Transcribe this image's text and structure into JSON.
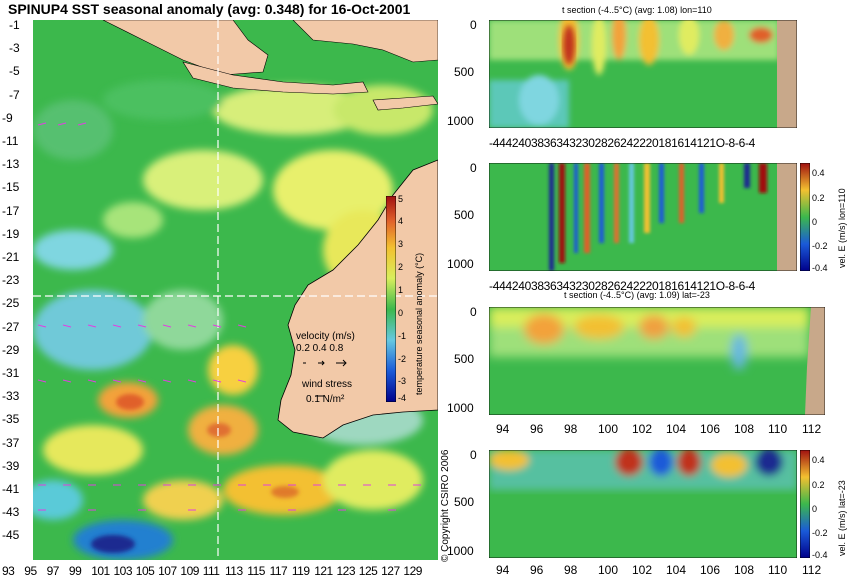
{
  "title": "SPINUP4 SST seasonal anomaly (avg: 0.348) for 16-Oct-2001",
  "map": {
    "lat_labels": [
      "-1",
      "-3",
      "-5",
      "-7",
      "-9",
      "-11",
      "-13",
      "-15",
      "-17",
      "-19",
      "-21",
      "-23",
      "-25",
      "-27",
      "-29",
      "-31",
      "-33",
      "-35",
      "-37",
      "-39",
      "-41",
      "-43",
      "-45"
    ],
    "lon_labels": [
      "93",
      "95",
      "97",
      "99",
      "101",
      "103",
      "105",
      "107",
      "109",
      "111",
      "113",
      "115",
      "117",
      "119",
      "121",
      "123",
      "125",
      "127",
      "129"
    ],
    "colorbar": {
      "ticks": [
        "5",
        "4",
        "3",
        "2",
        "1",
        "0",
        "-1",
        "-2",
        "-3",
        "-4"
      ],
      "label": "temperature seasonal anomaly (°C)"
    },
    "velocity_legend": {
      "title": "velocity (m/s)",
      "scale": "0.2 0.4 0.8"
    },
    "wind_legend": {
      "title": "wind stress",
      "value": "0.1 N/m²"
    }
  },
  "panels": [
    {
      "id": "t-section-lon",
      "title": "t section (-4..5°C) (avg: 1.08) lon=110",
      "y_ticks": [
        "0",
        "500",
        "1000"
      ],
      "x_ticks": [
        "-44",
        "-42",
        "-40",
        "-38",
        "-36",
        "-34",
        "-32",
        "-30",
        "-28",
        "-26",
        "-24",
        "-22",
        "-20",
        "-18",
        "-16",
        "-14",
        "-12",
        "-10",
        "-8",
        "-6",
        "-4"
      ],
      "x_label_text": "-44424038363432302826242220181614121O-8-6-4"
    },
    {
      "id": "vel-section-lon",
      "title": "",
      "y_ticks": [
        "0",
        "500",
        "1000"
      ],
      "x_label_text": "-44424038363432302826242220181614121O-8-6-4",
      "colorbar_ticks": [
        "0.4",
        "0.2",
        "0",
        "-0.2",
        "-0.4"
      ],
      "colorbar_label": "vel. E (m/s) lon=110"
    },
    {
      "id": "t-section-lat",
      "title": "t section (-4..5°C) (avg: 1.09) lat=-23",
      "y_ticks": [
        "0",
        "500",
        "1000"
      ],
      "x_ticks": [
        "94",
        "96",
        "98",
        "100",
        "102",
        "104",
        "106",
        "108",
        "110",
        "112"
      ]
    },
    {
      "id": "vel-section-lat",
      "title": "",
      "y_ticks": [
        "0",
        "500",
        "1000"
      ],
      "x_ticks": [
        "94",
        "96",
        "98",
        "100",
        "102",
        "104",
        "106",
        "108",
        "110",
        "112"
      ],
      "colorbar_ticks": [
        "0.4",
        "0.2",
        "0",
        "-0.2",
        "-0.4"
      ],
      "colorbar_label": "vel. E (m/s) lat=-23"
    }
  ],
  "copyright": "© Copyright CSIRO 2006",
  "colors": {
    "ocean_base": "#3ab84a",
    "land": "#f2c9a8",
    "seabed": "#c8a88a",
    "crosshair": "#ffffff",
    "arrows": "#e040e0"
  }
}
